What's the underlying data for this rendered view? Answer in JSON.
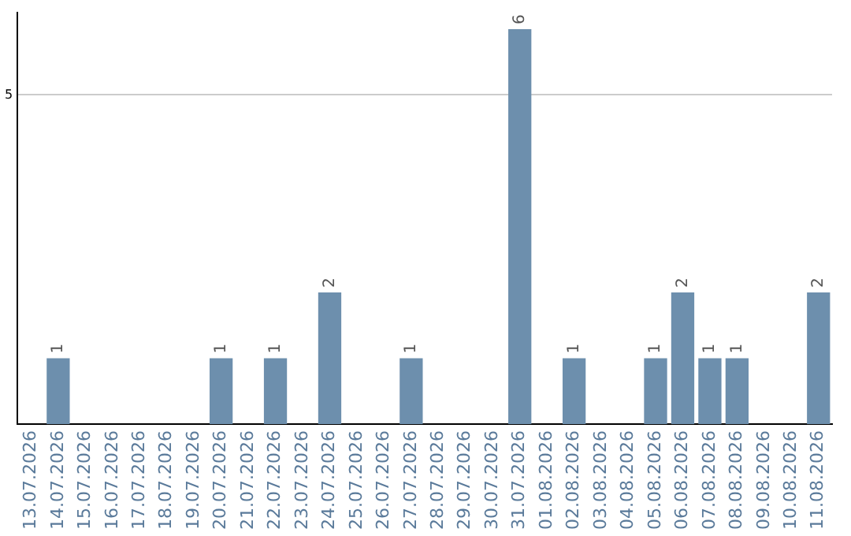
{
  "chart_data": {
    "type": "bar",
    "categories": [
      "13.07.2026",
      "14.07.2026",
      "15.07.2026",
      "16.07.2026",
      "17.07.2026",
      "18.07.2026",
      "19.07.2026",
      "20.07.2026",
      "21.07.2026",
      "22.07.2026",
      "23.07.2026",
      "24.07.2026",
      "25.07.2026",
      "26.07.2026",
      "27.07.2026",
      "28.07.2026",
      "29.07.2026",
      "30.07.2026",
      "31.07.2026",
      "01.08.2026",
      "02.08.2026",
      "03.08.2026",
      "04.08.2026",
      "05.08.2026",
      "06.08.2026",
      "07.08.2026",
      "08.08.2026",
      "09.08.2026",
      "10.08.2026",
      "11.08.2026"
    ],
    "values": [
      0,
      1,
      0,
      0,
      0,
      0,
      0,
      1,
      0,
      1,
      0,
      2,
      0,
      0,
      1,
      0,
      0,
      0,
      6,
      0,
      1,
      0,
      0,
      1,
      2,
      1,
      1,
      0,
      0,
      2
    ],
    "value_labels": [
      null,
      "1",
      null,
      null,
      null,
      null,
      null,
      "1",
      null,
      "1",
      null,
      "2",
      null,
      null,
      "1",
      null,
      null,
      null,
      "6",
      null,
      "1",
      null,
      null,
      "1",
      "2",
      "1",
      "1",
      null,
      null,
      "2"
    ],
    "color": "#6d8fad",
    "ylim": [
      0,
      6.25
    ],
    "yticks": [
      5
    ],
    "grid": "y",
    "legend": false
  }
}
